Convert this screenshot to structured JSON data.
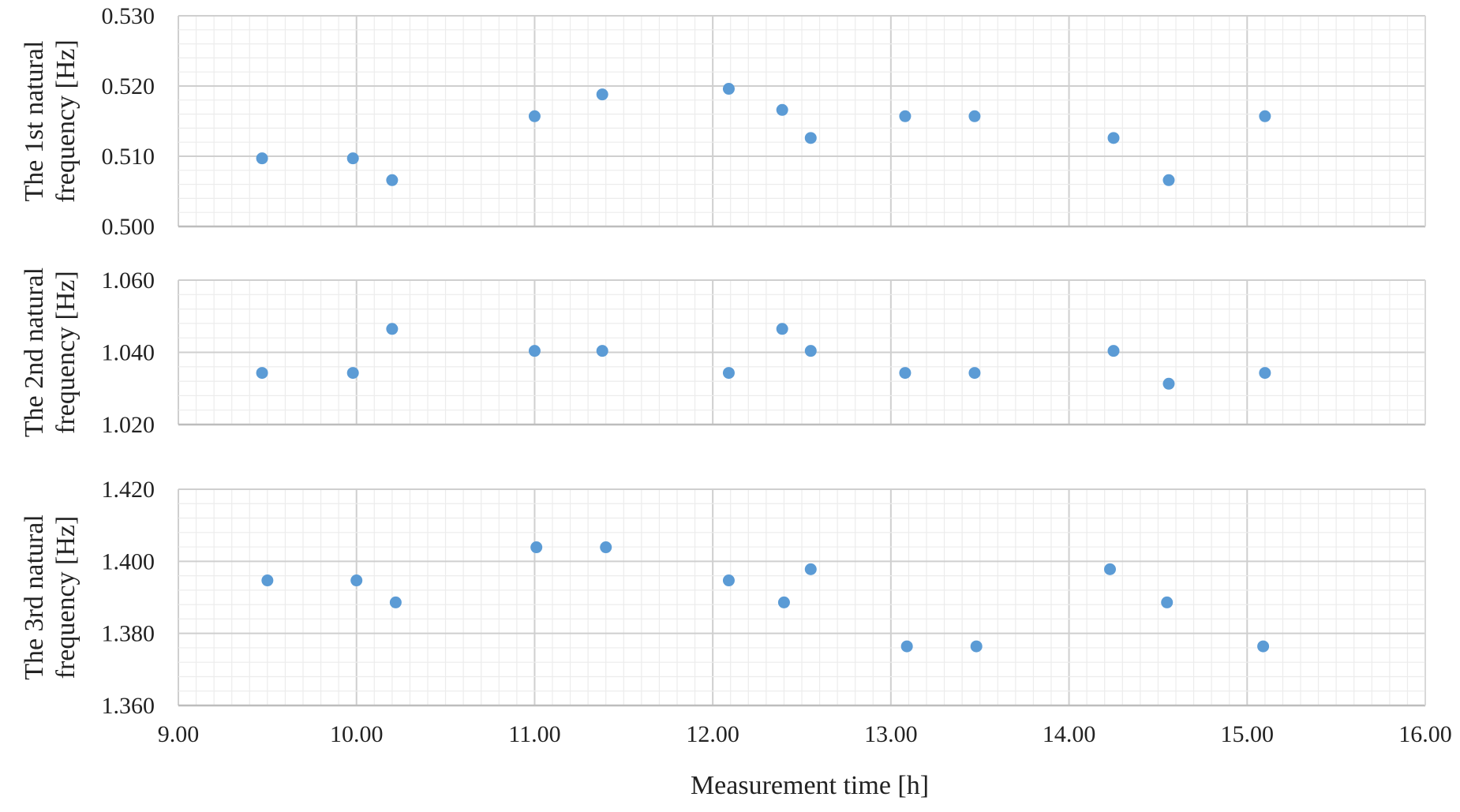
{
  "chart_data": [
    {
      "type": "scatter",
      "ylabel_lines": [
        "The 1st natural",
        "frequency [Hz]"
      ],
      "ylim": [
        0.5,
        0.53
      ],
      "y_major_ticks": [
        "0.500",
        "0.510",
        "0.520",
        "0.530"
      ],
      "y_major_values": [
        0.5,
        0.51,
        0.52,
        0.53
      ],
      "xlim": [
        9,
        16
      ],
      "grid": true,
      "marker_color": "#5b9bd5",
      "x": [
        9.47,
        9.98,
        10.2,
        11.0,
        11.38,
        12.09,
        12.39,
        12.55,
        13.08,
        13.47,
        14.25,
        14.56,
        15.1
      ],
      "y": [
        0.5097,
        0.5097,
        0.5066,
        0.5157,
        0.5188,
        0.5196,
        0.5166,
        0.5126,
        0.5157,
        0.5157,
        0.5126,
        0.5066,
        0.5157
      ]
    },
    {
      "type": "scatter",
      "ylabel_lines": [
        "The 2nd natural",
        "frequency [Hz]"
      ],
      "ylim": [
        1.02,
        1.06
      ],
      "y_major_ticks": [
        "1.020",
        "1.040",
        "1.060"
      ],
      "y_major_values": [
        1.02,
        1.04,
        1.06
      ],
      "xlim": [
        9,
        16
      ],
      "grid": true,
      "marker_color": "#5b9bd5",
      "x": [
        9.47,
        9.98,
        10.2,
        11.0,
        11.38,
        12.09,
        12.39,
        12.55,
        13.08,
        13.47,
        14.25,
        14.56,
        15.1
      ],
      "y": [
        1.0343,
        1.0343,
        1.0465,
        1.0404,
        1.0404,
        1.0343,
        1.0465,
        1.0404,
        1.0343,
        1.0343,
        1.0404,
        1.0313,
        1.0343
      ]
    },
    {
      "type": "scatter",
      "ylabel_lines": [
        "The 3rd natural",
        "frequency [Hz]"
      ],
      "ylim": [
        1.36,
        1.42
      ],
      "y_major_ticks": [
        "1.360",
        "1.380",
        "1.400",
        "1.420"
      ],
      "y_major_values": [
        1.36,
        1.38,
        1.4,
        1.42
      ],
      "xlim": [
        9,
        16
      ],
      "x_major_ticks": [
        "9.00",
        "10.00",
        "11.00",
        "12.00",
        "13.00",
        "14.00",
        "15.00",
        "16.00"
      ],
      "x_major_values": [
        9,
        10,
        11,
        12,
        13,
        14,
        15,
        16
      ],
      "xlabel": "Measurement time [h]",
      "grid": true,
      "marker_color": "#5b9bd5",
      "x": [
        9.5,
        10.0,
        10.22,
        11.01,
        11.4,
        12.09,
        12.4,
        12.55,
        13.09,
        13.48,
        14.23,
        14.55,
        15.09
      ],
      "y": [
        1.3947,
        1.3947,
        1.3886,
        1.4039,
        1.4039,
        1.3947,
        1.3886,
        1.3978,
        1.3764,
        1.3764,
        1.3978,
        1.3886,
        1.3764
      ]
    }
  ]
}
